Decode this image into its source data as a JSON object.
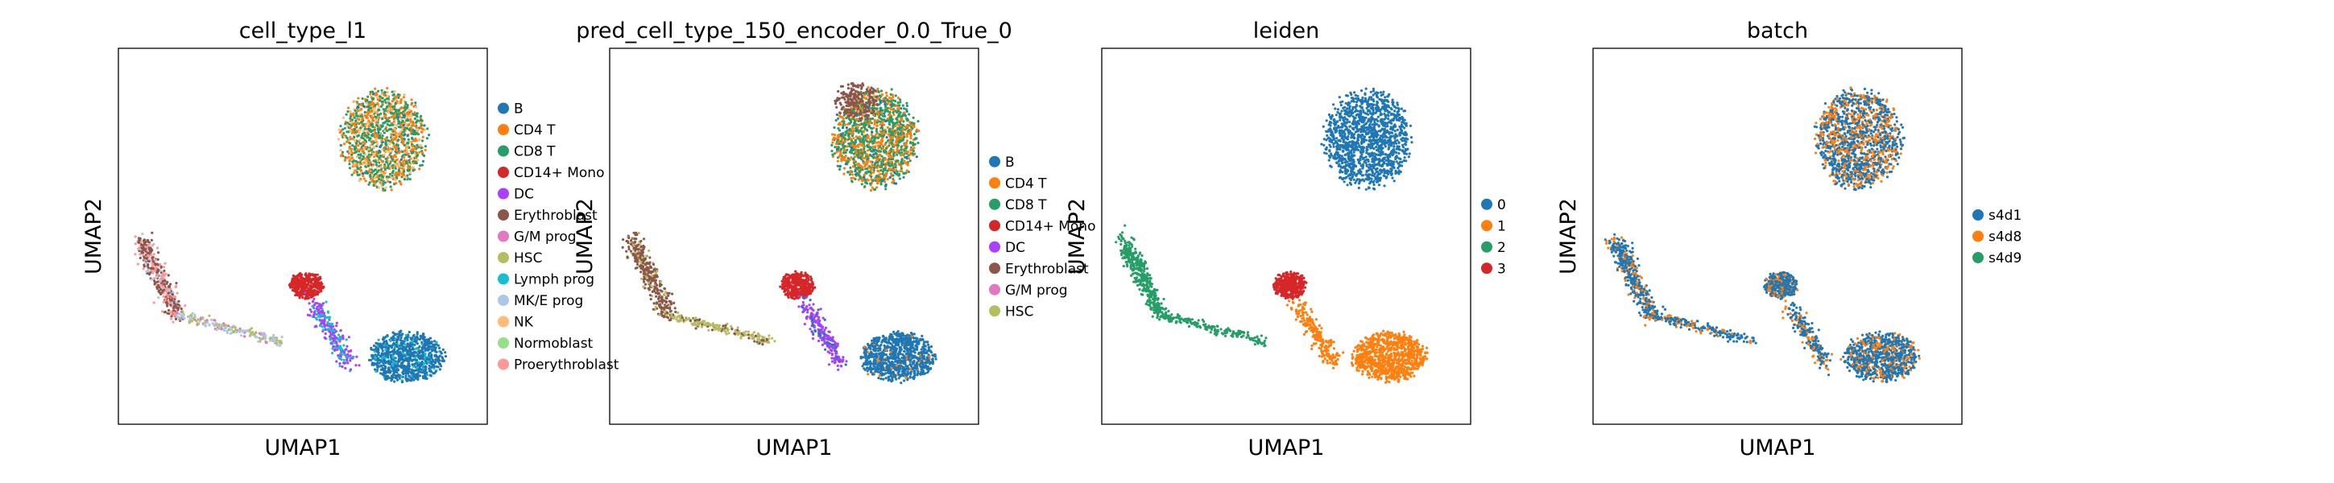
{
  "chart_data": [
    {
      "type": "scatter",
      "title": "cell_type_l1",
      "xlabel": "UMAP1",
      "ylabel": "UMAP2",
      "grid": false,
      "legend_placement": "right",
      "series": [
        {
          "name": "B",
          "color": "#1f77b4"
        },
        {
          "name": "CD4 T",
          "color": "#ff7f0e"
        },
        {
          "name": "CD8 T",
          "color": "#279e68"
        },
        {
          "name": "CD14+ Mono",
          "color": "#d62728"
        },
        {
          "name": "DC",
          "color": "#aa40fc"
        },
        {
          "name": "Erythroblast",
          "color": "#8c564b"
        },
        {
          "name": "G/M prog",
          "color": "#e377c2"
        },
        {
          "name": "HSC",
          "color": "#b5bd61"
        },
        {
          "name": "Lymph prog",
          "color": "#17becf"
        },
        {
          "name": "MK/E prog",
          "color": "#aec7e8"
        },
        {
          "name": "NK",
          "color": "#ffbb78"
        },
        {
          "name": "Normoblast",
          "color": "#98df8a"
        },
        {
          "name": "Proerythroblast",
          "color": "#ff9896"
        }
      ]
    },
    {
      "type": "scatter",
      "title": "pred_cell_type_150_encoder_0.0_True_0",
      "xlabel": "UMAP1",
      "ylabel": "UMAP2",
      "grid": false,
      "legend_placement": "right",
      "series": [
        {
          "name": "B",
          "color": "#1f77b4"
        },
        {
          "name": "CD4 T",
          "color": "#ff7f0e"
        },
        {
          "name": "CD8 T",
          "color": "#279e68"
        },
        {
          "name": "CD14+ Mono",
          "color": "#d62728"
        },
        {
          "name": "DC",
          "color": "#aa40fc"
        },
        {
          "name": "Erythroblast",
          "color": "#8c564b"
        },
        {
          "name": "G/M prog",
          "color": "#e377c2"
        },
        {
          "name": "HSC",
          "color": "#b5bd61"
        }
      ]
    },
    {
      "type": "scatter",
      "title": "leiden",
      "xlabel": "UMAP1",
      "ylabel": "UMAP2",
      "grid": false,
      "legend_placement": "right",
      "series": [
        {
          "name": "0",
          "color": "#1f77b4"
        },
        {
          "name": "1",
          "color": "#ff7f0e"
        },
        {
          "name": "2",
          "color": "#279e68"
        },
        {
          "name": "3",
          "color": "#d62728"
        }
      ]
    },
    {
      "type": "scatter",
      "title": "batch",
      "xlabel": "UMAP1",
      "ylabel": "UMAP2",
      "grid": false,
      "legend_placement": "right",
      "series": [
        {
          "name": "s4d1",
          "color": "#1f77b4"
        },
        {
          "name": "s4d8",
          "color": "#ff7f0e"
        },
        {
          "name": "s4d9",
          "color": "#279e68"
        }
      ]
    }
  ]
}
